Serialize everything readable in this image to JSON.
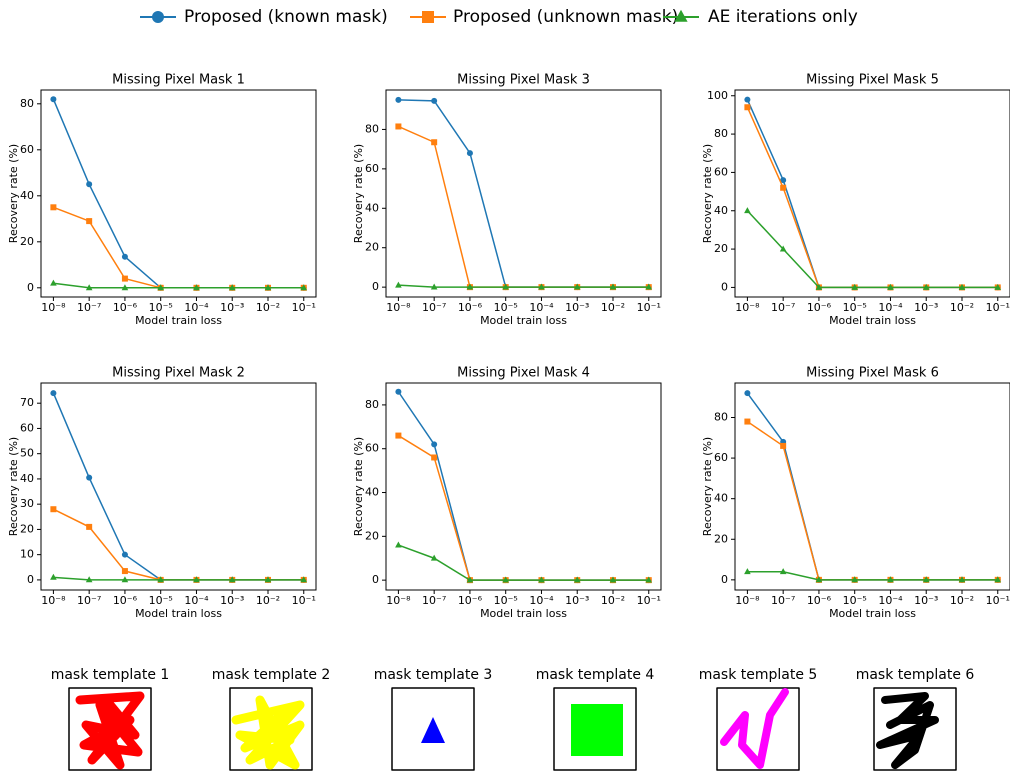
{
  "legend_position": "top",
  "chart_data": [
    {
      "type": "line",
      "title": "Missing Pixel Mask 1",
      "xlabel": "Model train loss",
      "ylabel": "Recovery rate (%)",
      "xscale": "log",
      "x": [
        1e-08,
        1e-07,
        1e-06,
        1e-05,
        0.0001,
        0.001,
        0.01,
        0.1
      ],
      "xlim": [
        4.5e-09,
        0.22
      ],
      "xticks": [
        {
          "value": 1e-08,
          "label": "10⁻⁸"
        },
        {
          "value": 1e-07,
          "label": "10⁻⁷"
        },
        {
          "value": 1e-06,
          "label": "10⁻⁶"
        },
        {
          "value": 1e-05,
          "label": "10⁻⁵"
        },
        {
          "value": 0.0001,
          "label": "10⁻⁴"
        },
        {
          "value": 0.001,
          "label": "10⁻³"
        },
        {
          "value": 0.01,
          "label": "10⁻²"
        },
        {
          "value": 0.1,
          "label": "10⁻¹"
        }
      ],
      "ylim": [
        -4,
        86
      ],
      "yticks": [
        0,
        20,
        40,
        60,
        80
      ],
      "series": [
        {
          "name": "Proposed (known mask)",
          "color": "#1f77b4",
          "marker": "circle",
          "values": [
            82,
            45,
            13.5,
            0,
            0,
            0,
            0,
            0
          ]
        },
        {
          "name": "Proposed (unknown mask)",
          "color": "#ff7f0e",
          "marker": "square",
          "values": [
            35,
            29,
            4,
            0,
            0,
            0,
            0,
            0
          ]
        },
        {
          "name": "AE iterations only",
          "color": "#2ca02c",
          "marker": "triangle",
          "values": [
            2,
            0,
            0,
            0,
            0,
            0,
            0,
            0
          ]
        }
      ]
    },
    {
      "type": "line",
      "title": "Missing Pixel Mask 3",
      "xlabel": "Model train loss",
      "ylabel": "Recovery rate (%)",
      "xscale": "log",
      "x": [
        1e-08,
        1e-07,
        1e-06,
        1e-05,
        0.0001,
        0.001,
        0.01,
        0.1
      ],
      "xlim": [
        4.5e-09,
        0.22
      ],
      "xticks": [
        {
          "value": 1e-08,
          "label": "10⁻⁸"
        },
        {
          "value": 1e-07,
          "label": "10⁻⁷"
        },
        {
          "value": 1e-06,
          "label": "10⁻⁶"
        },
        {
          "value": 1e-05,
          "label": "10⁻⁵"
        },
        {
          "value": 0.0001,
          "label": "10⁻⁴"
        },
        {
          "value": 0.001,
          "label": "10⁻³"
        },
        {
          "value": 0.01,
          "label": "10⁻²"
        },
        {
          "value": 0.1,
          "label": "10⁻¹"
        }
      ],
      "ylim": [
        -5,
        100
      ],
      "yticks": [
        0,
        20,
        40,
        60,
        80
      ],
      "series": [
        {
          "name": "Proposed (known mask)",
          "color": "#1f77b4",
          "marker": "circle",
          "values": [
            95,
            94.5,
            68,
            0,
            0,
            0,
            0,
            0
          ]
        },
        {
          "name": "Proposed (unknown mask)",
          "color": "#ff7f0e",
          "marker": "square",
          "values": [
            81.5,
            73.5,
            0,
            0,
            0,
            0,
            0,
            0
          ]
        },
        {
          "name": "AE iterations only",
          "color": "#2ca02c",
          "marker": "triangle",
          "values": [
            1,
            0,
            0,
            0,
            0,
            0,
            0,
            0
          ]
        }
      ]
    },
    {
      "type": "line",
      "title": "Missing Pixel Mask 5",
      "xlabel": "Model train loss",
      "ylabel": "Recovery rate (%)",
      "xscale": "log",
      "x": [
        1e-08,
        1e-07,
        1e-06,
        1e-05,
        0.0001,
        0.001,
        0.01,
        0.1
      ],
      "xlim": [
        4.5e-09,
        0.22
      ],
      "xticks": [
        {
          "value": 1e-08,
          "label": "10⁻⁸"
        },
        {
          "value": 1e-07,
          "label": "10⁻⁷"
        },
        {
          "value": 1e-06,
          "label": "10⁻⁶"
        },
        {
          "value": 1e-05,
          "label": "10⁻⁵"
        },
        {
          "value": 0.0001,
          "label": "10⁻⁴"
        },
        {
          "value": 0.001,
          "label": "10⁻³"
        },
        {
          "value": 0.01,
          "label": "10⁻²"
        },
        {
          "value": 0.1,
          "label": "10⁻¹"
        }
      ],
      "ylim": [
        -5,
        103
      ],
      "yticks": [
        0,
        20,
        40,
        60,
        80,
        100
      ],
      "series": [
        {
          "name": "Proposed (known mask)",
          "color": "#1f77b4",
          "marker": "circle",
          "values": [
            98,
            56,
            0,
            0,
            0,
            0,
            0,
            0
          ]
        },
        {
          "name": "Proposed (unknown mask)",
          "color": "#ff7f0e",
          "marker": "square",
          "values": [
            94,
            52,
            0,
            0,
            0,
            0,
            0,
            0
          ]
        },
        {
          "name": "AE iterations only",
          "color": "#2ca02c",
          "marker": "triangle",
          "values": [
            40,
            20,
            0,
            0,
            0,
            0,
            0,
            0
          ]
        }
      ]
    },
    {
      "type": "line",
      "title": "Missing Pixel Mask 2",
      "xlabel": "Model train loss",
      "ylabel": "Recovery rate (%)",
      "xscale": "log",
      "x": [
        1e-08,
        1e-07,
        1e-06,
        1e-05,
        0.0001,
        0.001,
        0.01,
        0.1
      ],
      "xlim": [
        4.5e-09,
        0.22
      ],
      "xticks": [
        {
          "value": 1e-08,
          "label": "10⁻⁸"
        },
        {
          "value": 1e-07,
          "label": "10⁻⁷"
        },
        {
          "value": 1e-06,
          "label": "10⁻⁶"
        },
        {
          "value": 1e-05,
          "label": "10⁻⁵"
        },
        {
          "value": 0.0001,
          "label": "10⁻⁴"
        },
        {
          "value": 0.001,
          "label": "10⁻³"
        },
        {
          "value": 0.01,
          "label": "10⁻²"
        },
        {
          "value": 0.1,
          "label": "10⁻¹"
        }
      ],
      "ylim": [
        -4,
        78
      ],
      "yticks": [
        0,
        10,
        20,
        30,
        40,
        50,
        60,
        70
      ],
      "series": [
        {
          "name": "Proposed (known mask)",
          "color": "#1f77b4",
          "marker": "circle",
          "values": [
            74,
            40.5,
            10,
            0,
            0,
            0,
            0,
            0
          ]
        },
        {
          "name": "Proposed (unknown mask)",
          "color": "#ff7f0e",
          "marker": "square",
          "values": [
            28,
            21,
            3.5,
            0,
            0,
            0,
            0,
            0
          ]
        },
        {
          "name": "AE iterations only",
          "color": "#2ca02c",
          "marker": "triangle",
          "values": [
            1,
            0,
            0,
            0,
            0,
            0,
            0,
            0
          ]
        }
      ]
    },
    {
      "type": "line",
      "title": "Missing Pixel Mask 4",
      "xlabel": "Model train loss",
      "ylabel": "Recovery rate (%)",
      "xscale": "log",
      "x": [
        1e-08,
        1e-07,
        1e-06,
        1e-05,
        0.0001,
        0.001,
        0.01,
        0.1
      ],
      "xlim": [
        4.5e-09,
        0.22
      ],
      "xticks": [
        {
          "value": 1e-08,
          "label": "10⁻⁸"
        },
        {
          "value": 1e-07,
          "label": "10⁻⁷"
        },
        {
          "value": 1e-06,
          "label": "10⁻⁶"
        },
        {
          "value": 1e-05,
          "label": "10⁻⁵"
        },
        {
          "value": 0.0001,
          "label": "10⁻⁴"
        },
        {
          "value": 0.001,
          "label": "10⁻³"
        },
        {
          "value": 0.01,
          "label": "10⁻²"
        },
        {
          "value": 0.1,
          "label": "10⁻¹"
        }
      ],
      "ylim": [
        -4.5,
        90
      ],
      "yticks": [
        0,
        20,
        40,
        60,
        80
      ],
      "series": [
        {
          "name": "Proposed (known mask)",
          "color": "#1f77b4",
          "marker": "circle",
          "values": [
            86,
            62,
            0,
            0,
            0,
            0,
            0,
            0
          ]
        },
        {
          "name": "Proposed (unknown mask)",
          "color": "#ff7f0e",
          "marker": "square",
          "values": [
            66,
            56,
            0,
            0,
            0,
            0,
            0,
            0
          ]
        },
        {
          "name": "AE iterations only",
          "color": "#2ca02c",
          "marker": "triangle",
          "values": [
            16,
            10,
            0,
            0,
            0,
            0,
            0,
            0
          ]
        }
      ]
    },
    {
      "type": "line",
      "title": "Missing Pixel Mask 6",
      "xlabel": "Model train loss",
      "ylabel": "Recovery rate (%)",
      "xscale": "log",
      "x": [
        1e-08,
        1e-07,
        1e-06,
        1e-05,
        0.0001,
        0.001,
        0.01,
        0.1
      ],
      "xlim": [
        4.5e-09,
        0.22
      ],
      "xticks": [
        {
          "value": 1e-08,
          "label": "10⁻⁸"
        },
        {
          "value": 1e-07,
          "label": "10⁻⁷"
        },
        {
          "value": 1e-06,
          "label": "10⁻⁶"
        },
        {
          "value": 1e-05,
          "label": "10⁻⁵"
        },
        {
          "value": 0.0001,
          "label": "10⁻⁴"
        },
        {
          "value": 0.001,
          "label": "10⁻³"
        },
        {
          "value": 0.01,
          "label": "10⁻²"
        },
        {
          "value": 0.1,
          "label": "10⁻¹"
        }
      ],
      "ylim": [
        -5,
        97
      ],
      "yticks": [
        0,
        20,
        40,
        60,
        80
      ],
      "series": [
        {
          "name": "Proposed (known mask)",
          "color": "#1f77b4",
          "marker": "circle",
          "values": [
            92,
            68,
            0,
            0,
            0,
            0,
            0,
            0
          ]
        },
        {
          "name": "Proposed (unknown mask)",
          "color": "#ff7f0e",
          "marker": "square",
          "values": [
            78,
            66,
            0,
            0,
            0,
            0,
            0,
            0
          ]
        },
        {
          "name": "AE iterations only",
          "color": "#2ca02c",
          "marker": "triangle",
          "values": [
            4,
            4,
            0,
            0,
            0,
            0,
            0,
            0
          ]
        }
      ]
    }
  ],
  "mask_templates": [
    "mask template 1",
    "mask template 2",
    "mask template 3",
    "mask template 4",
    "mask template 5",
    "mask template 6"
  ]
}
